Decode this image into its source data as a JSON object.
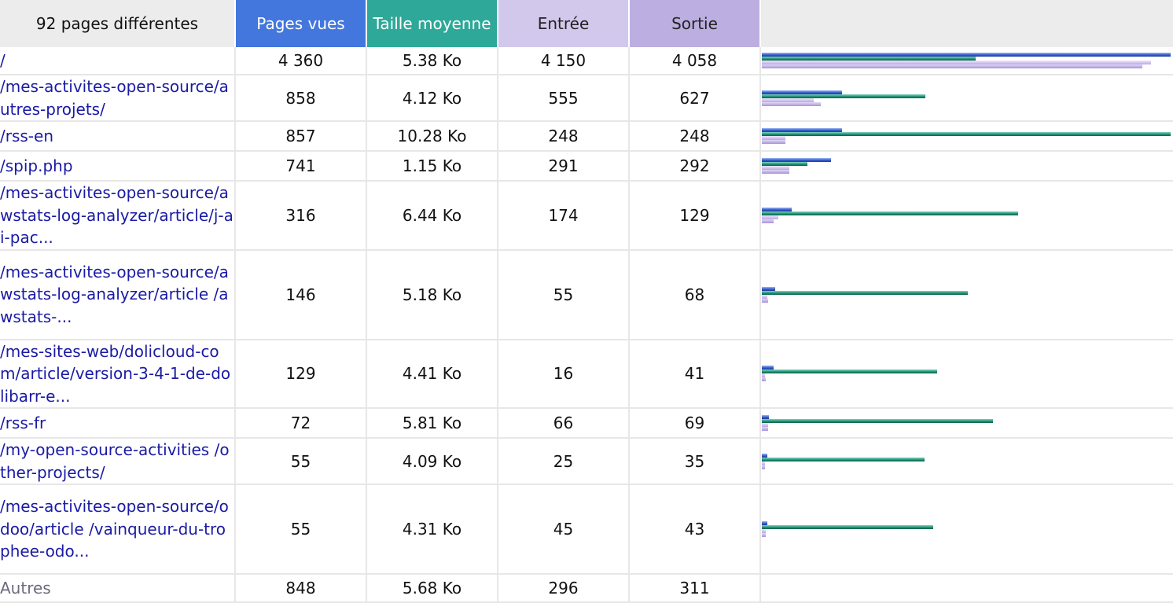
{
  "header": {
    "url_label": "92 pages différentes",
    "views_label": "Pages vues",
    "size_label": "Taille moyenne",
    "entry_label": "Entrée",
    "exit_label": "Sortie"
  },
  "colors": {
    "views": "#4477dd",
    "size": "#2ea898",
    "entry": "#d1c8ec",
    "exit": "#bcaee0",
    "link": "#1a1aa6"
  },
  "rows": [
    {
      "url": "/",
      "views": "4 360",
      "size": "5.38 Ko",
      "entry": "4 150",
      "exit": "4 058",
      "v": 4360,
      "s": 5.38,
      "e": 4150,
      "x": 4058
    },
    {
      "url": "/mes-activites-open-source/autres-projets/",
      "views": "858",
      "size": "4.12 Ko",
      "entry": "555",
      "exit": "627",
      "v": 858,
      "s": 4.12,
      "e": 555,
      "x": 627
    },
    {
      "url": "/rss-en",
      "views": "857",
      "size": "10.28 Ko",
      "entry": "248",
      "exit": "248",
      "v": 857,
      "s": 10.28,
      "e": 248,
      "x": 248
    },
    {
      "url": "/spip.php",
      "views": "741",
      "size": "1.15 Ko",
      "entry": "291",
      "exit": "292",
      "v": 741,
      "s": 1.15,
      "e": 291,
      "x": 292
    },
    {
      "url": "/mes-activites-open-source/awstats-log-analyzer/article/j-ai-pac...",
      "views": "316",
      "size": "6.44 Ko",
      "entry": "174",
      "exit": "129",
      "v": 316,
      "s": 6.44,
      "e": 174,
      "x": 129
    },
    {
      "url": "/mes-activites-open-source/awstats-log-analyzer/article /awstats-...",
      "views": "146",
      "size": "5.18 Ko",
      "entry": "55",
      "exit": "68",
      "v": 146,
      "s": 5.18,
      "e": 55,
      "x": 68
    },
    {
      "url": "/mes-sites-web/dolicloud-com/article/version-3-4-1-de-dolibarr-e...",
      "views": "129",
      "size": "4.41 Ko",
      "entry": "16",
      "exit": "41",
      "v": 129,
      "s": 4.41,
      "e": 16,
      "x": 41
    },
    {
      "url": "/rss-fr",
      "views": "72",
      "size": "5.81 Ko",
      "entry": "66",
      "exit": "69",
      "v": 72,
      "s": 5.81,
      "e": 66,
      "x": 69
    },
    {
      "url": "/my-open-source-activities /other-projects/",
      "views": "55",
      "size": "4.09 Ko",
      "entry": "25",
      "exit": "35",
      "v": 55,
      "s": 4.09,
      "e": 25,
      "x": 35
    },
    {
      "url": "/mes-activites-open-source/odoo/article /vainqueur-du-trophee-odo...",
      "views": "55",
      "size": "4.31 Ko",
      "entry": "45",
      "exit": "43",
      "v": 55,
      "s": 4.31,
      "e": 45,
      "x": 43
    }
  ],
  "other": {
    "url": "Autres",
    "views": "848",
    "size": "5.68 Ko",
    "entry": "296",
    "exit": "311"
  }
}
